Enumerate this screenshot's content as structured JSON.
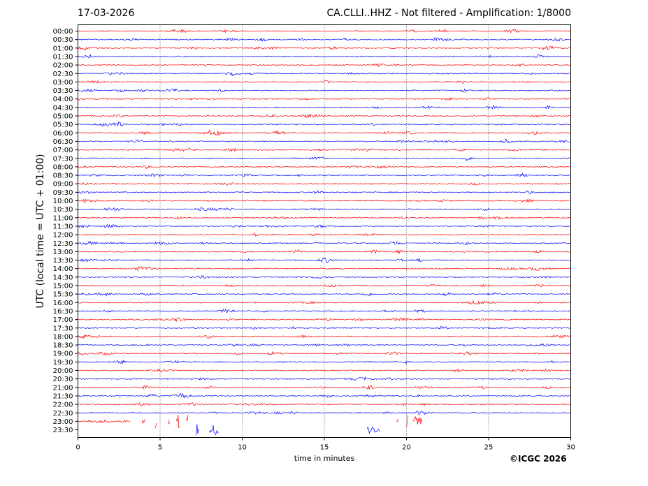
{
  "header": {
    "date": "17-03-2026",
    "title": "CA.CLLI..HHZ - Not filtered - Amplification: 1/8000"
  },
  "footer": {
    "copyright": "©ICGC 2026"
  },
  "chart_data": {
    "type": "line",
    "title": "CA.CLLI..HHZ - Not filtered - Amplification: 1/8000",
    "xlabel": "time in minutes",
    "ylabel": "UTC (local time = UTC + 01:00)",
    "xlim": [
      0,
      30
    ],
    "xticks": [
      0,
      5,
      10,
      15,
      20,
      25,
      30
    ],
    "grid": "vertical dotted lines at 5-minute intervals",
    "row_labels": [
      "00:00",
      "00:30",
      "01:00",
      "01:30",
      "02:00",
      "02:30",
      "03:00",
      "03:30",
      "04:00",
      "04:30",
      "05:00",
      "05:30",
      "06:00",
      "06:30",
      "07:00",
      "07:30",
      "08:00",
      "08:30",
      "09:00",
      "09:30",
      "10:00",
      "10:30",
      "11:00",
      "11:30",
      "12:00",
      "12:30",
      "13:00",
      "13:30",
      "14:00",
      "14:30",
      "15:00",
      "15:30",
      "16:00",
      "16:30",
      "17:00",
      "17:30",
      "18:00",
      "18:30",
      "19:00",
      "19:30",
      "20:00",
      "20:30",
      "21:00",
      "21:30",
      "22:00",
      "22:30",
      "23:00",
      "23:30"
    ],
    "colors": [
      "#ff0000",
      "#0000ff"
    ],
    "trace_23_00_segments": [
      [
        0,
        3.2
      ],
      [
        3.9,
        4.1
      ],
      [
        4.7,
        4.8
      ],
      [
        5.5,
        5.6
      ],
      [
        6.0,
        6.2
      ],
      [
        6.6,
        6.7
      ],
      [
        19.4,
        19.5
      ],
      [
        20.0,
        20.1
      ],
      [
        20.4,
        21.0
      ]
    ],
    "trace_23_30_segments": [
      [
        7.2,
        7.4
      ],
      [
        8.0,
        8.6
      ],
      [
        17.6,
        18.4
      ]
    ]
  }
}
